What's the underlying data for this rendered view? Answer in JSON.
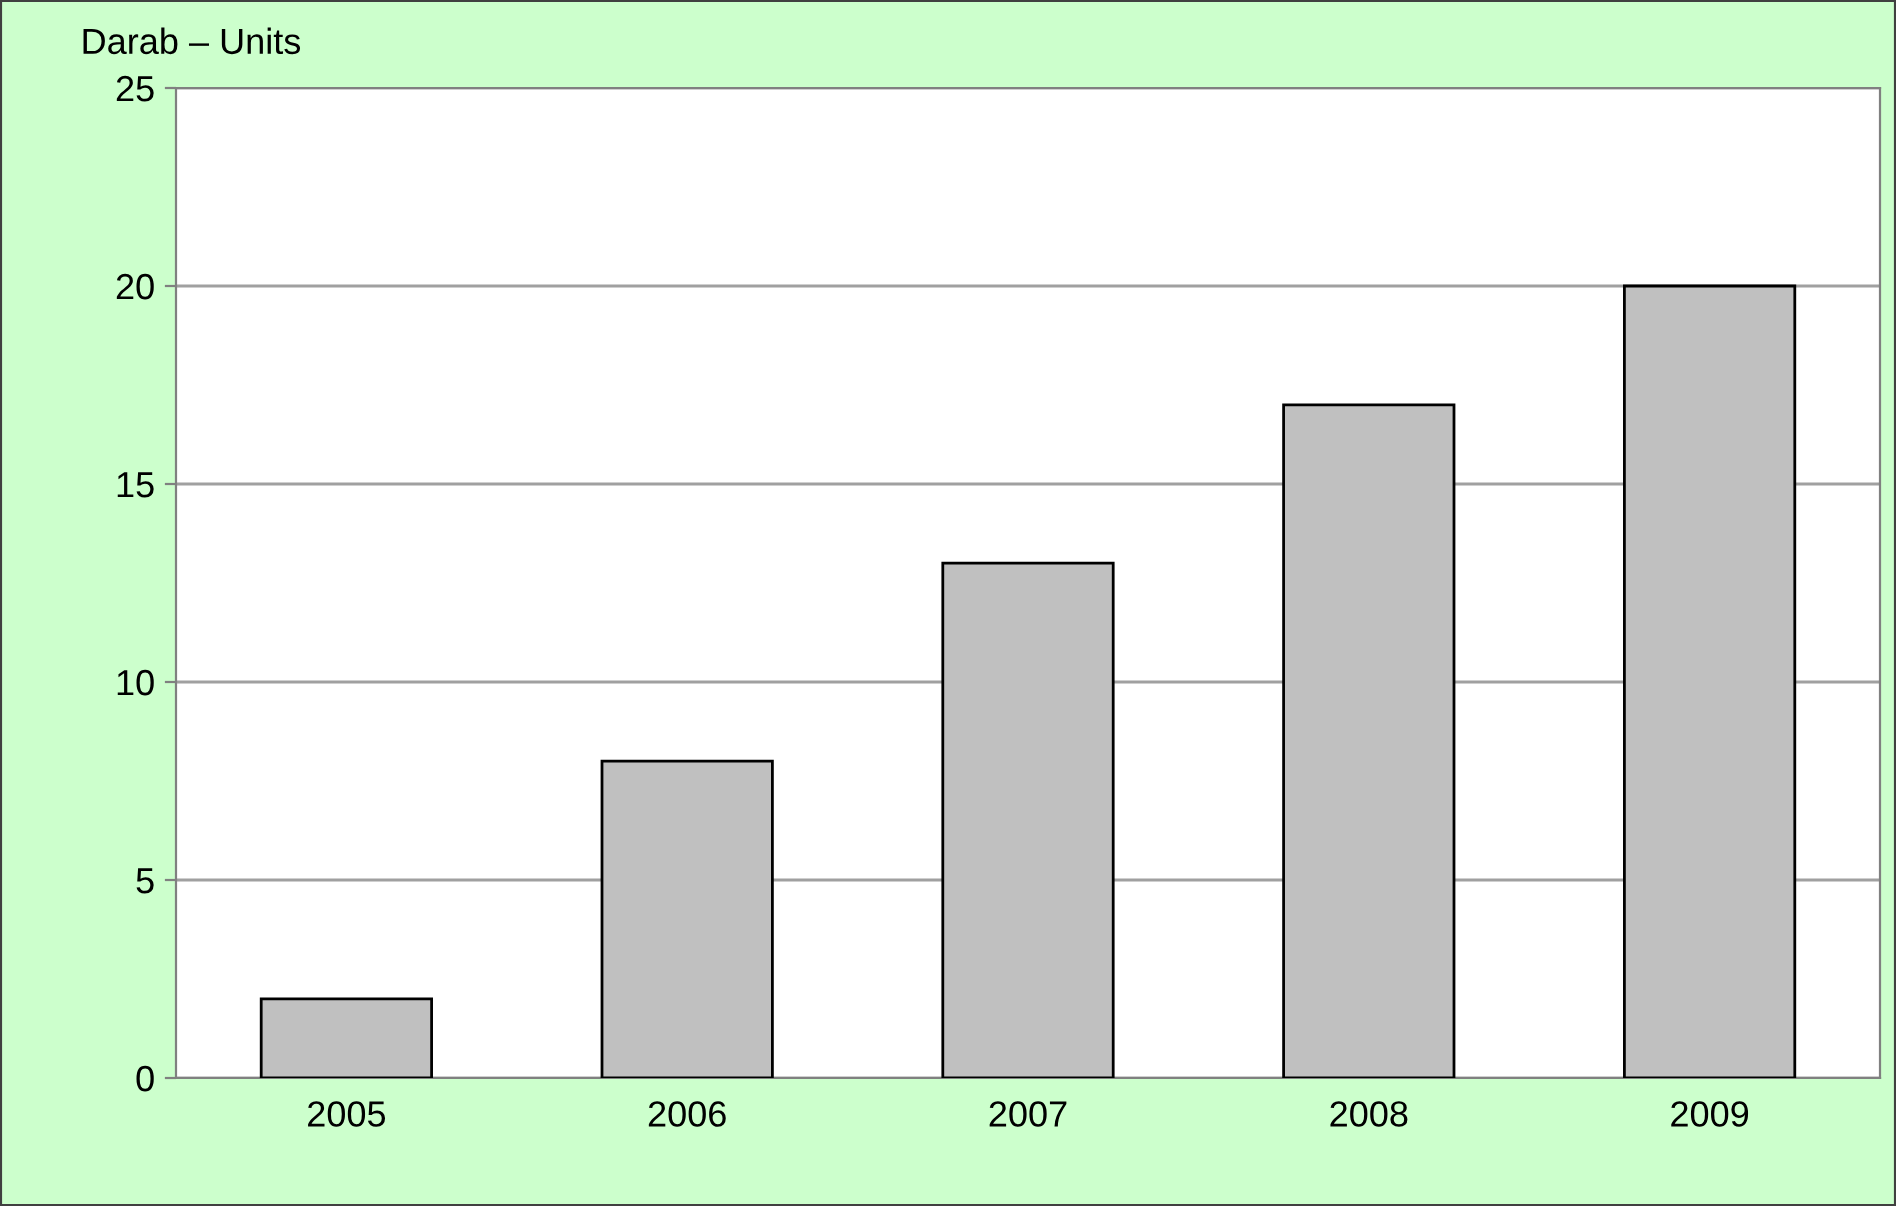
{
  "chart_data": {
    "type": "bar",
    "ylabel": "Darab – Units",
    "categories": [
      "2005",
      "2006",
      "2007",
      "2008",
      "2009"
    ],
    "values": [
      2,
      8,
      13,
      17,
      20
    ],
    "color": "#c0c0c0",
    "ylim": [
      0,
      25
    ],
    "yticks": [
      0,
      5,
      10,
      15,
      20,
      25
    ],
    "grid": "y",
    "legend": false
  }
}
